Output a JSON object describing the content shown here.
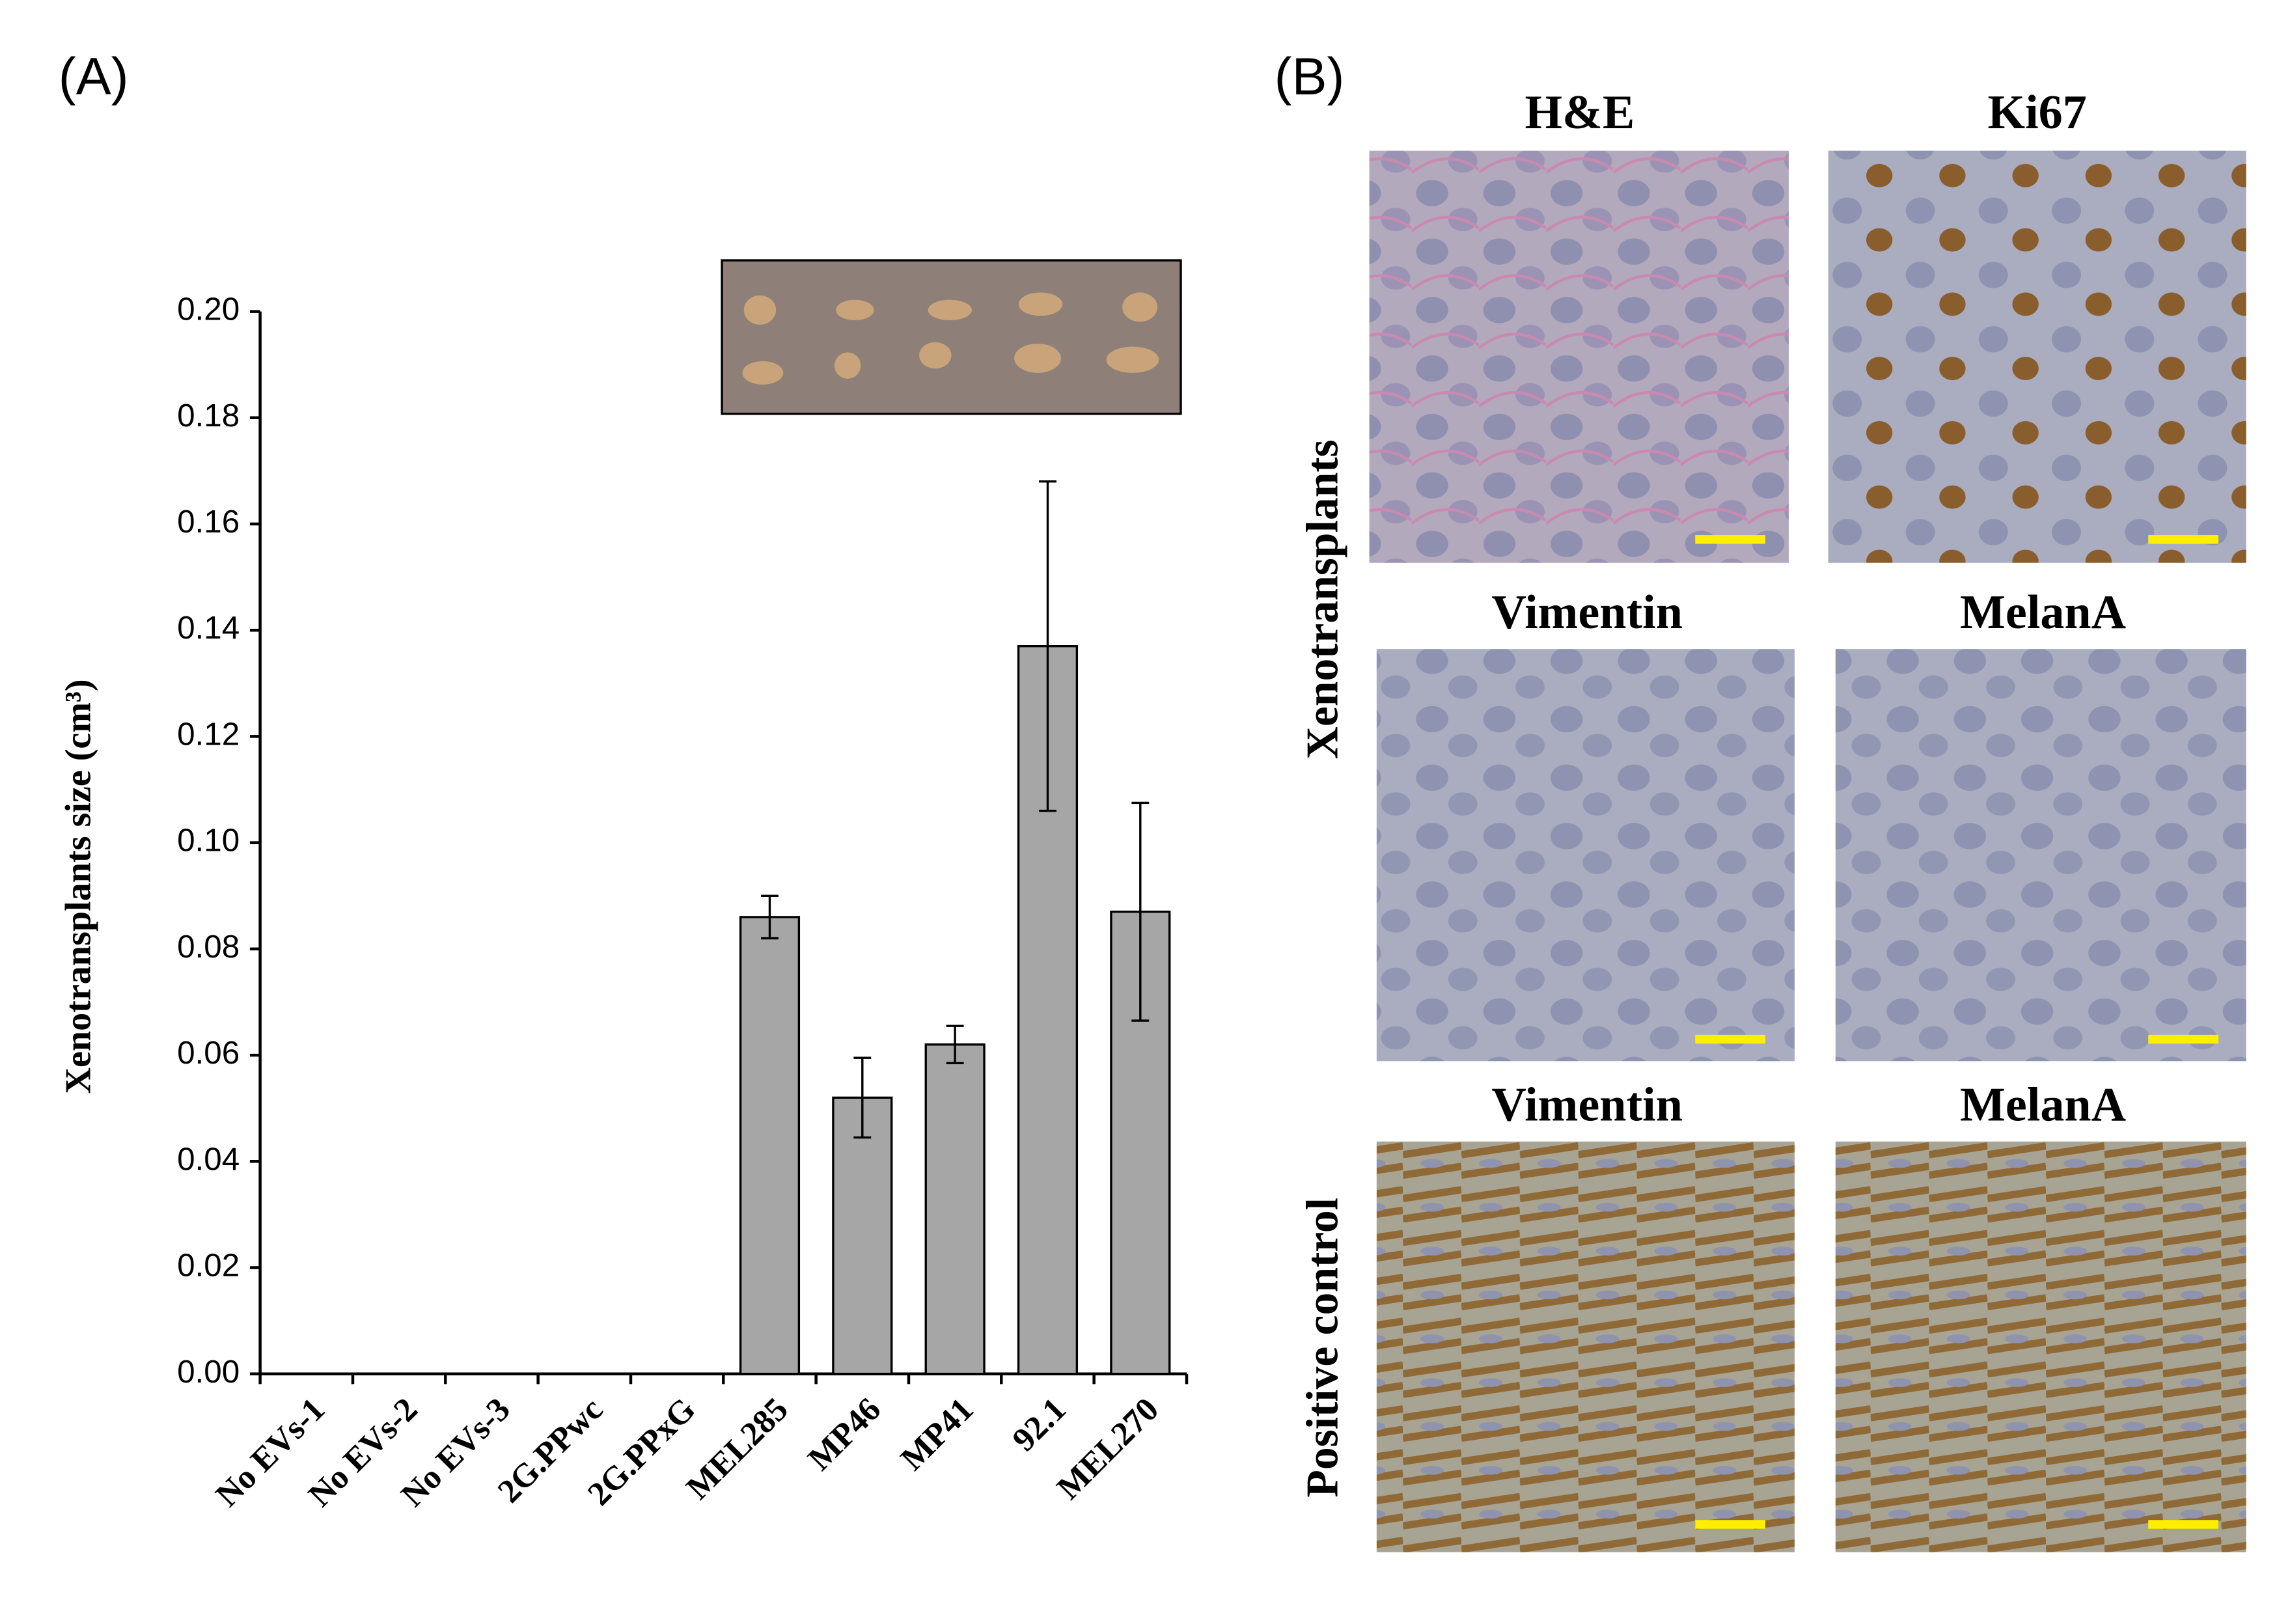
{
  "chart_data": {
    "type": "bar",
    "panel_label": "(A)",
    "ylabel": "Xenotransplants size (cm³)",
    "categories": [
      "No EVs-1",
      "No EVs-2",
      "No EVs-3",
      "2G.PPwc",
      "2G.PPxG",
      "MEL285",
      "MP46",
      "MP41",
      "92.1",
      "MEL270"
    ],
    "values": [
      0,
      0,
      0,
      0,
      0,
      0.086,
      0.052,
      0.062,
      0.137,
      0.087
    ],
    "errors": [
      0,
      0,
      0,
      0,
      0,
      0.004,
      0.0075,
      0.0035,
      0.031,
      0.0205
    ],
    "color": "#a6a6a6",
    "ylim": [
      0,
      0.2
    ],
    "yticks": [
      {
        "value": 0,
        "label": "0.00"
      },
      {
        "value": 0.02,
        "label": "0.02"
      },
      {
        "value": 0.04,
        "label": "0.04"
      },
      {
        "value": 0.06,
        "label": "0.06"
      },
      {
        "value": 0.08,
        "label": "0.08"
      },
      {
        "value": 0.1,
        "label": "0.10"
      },
      {
        "value": 0.12,
        "label": "0.12"
      },
      {
        "value": 0.14,
        "label": "0.14"
      },
      {
        "value": 0.16,
        "label": "0.16"
      },
      {
        "value": 0.18,
        "label": "0.18"
      },
      {
        "value": 0.2,
        "label": "0.20"
      }
    ],
    "grid": false
  },
  "panel_b": {
    "panel_label": "(B)",
    "row_labels": [
      "Xenotransplants",
      "Positive control"
    ],
    "titles": [
      "H&E",
      "Ki67",
      "Vimentin",
      "MelanA",
      "Vimentin",
      "MelanA"
    ]
  }
}
